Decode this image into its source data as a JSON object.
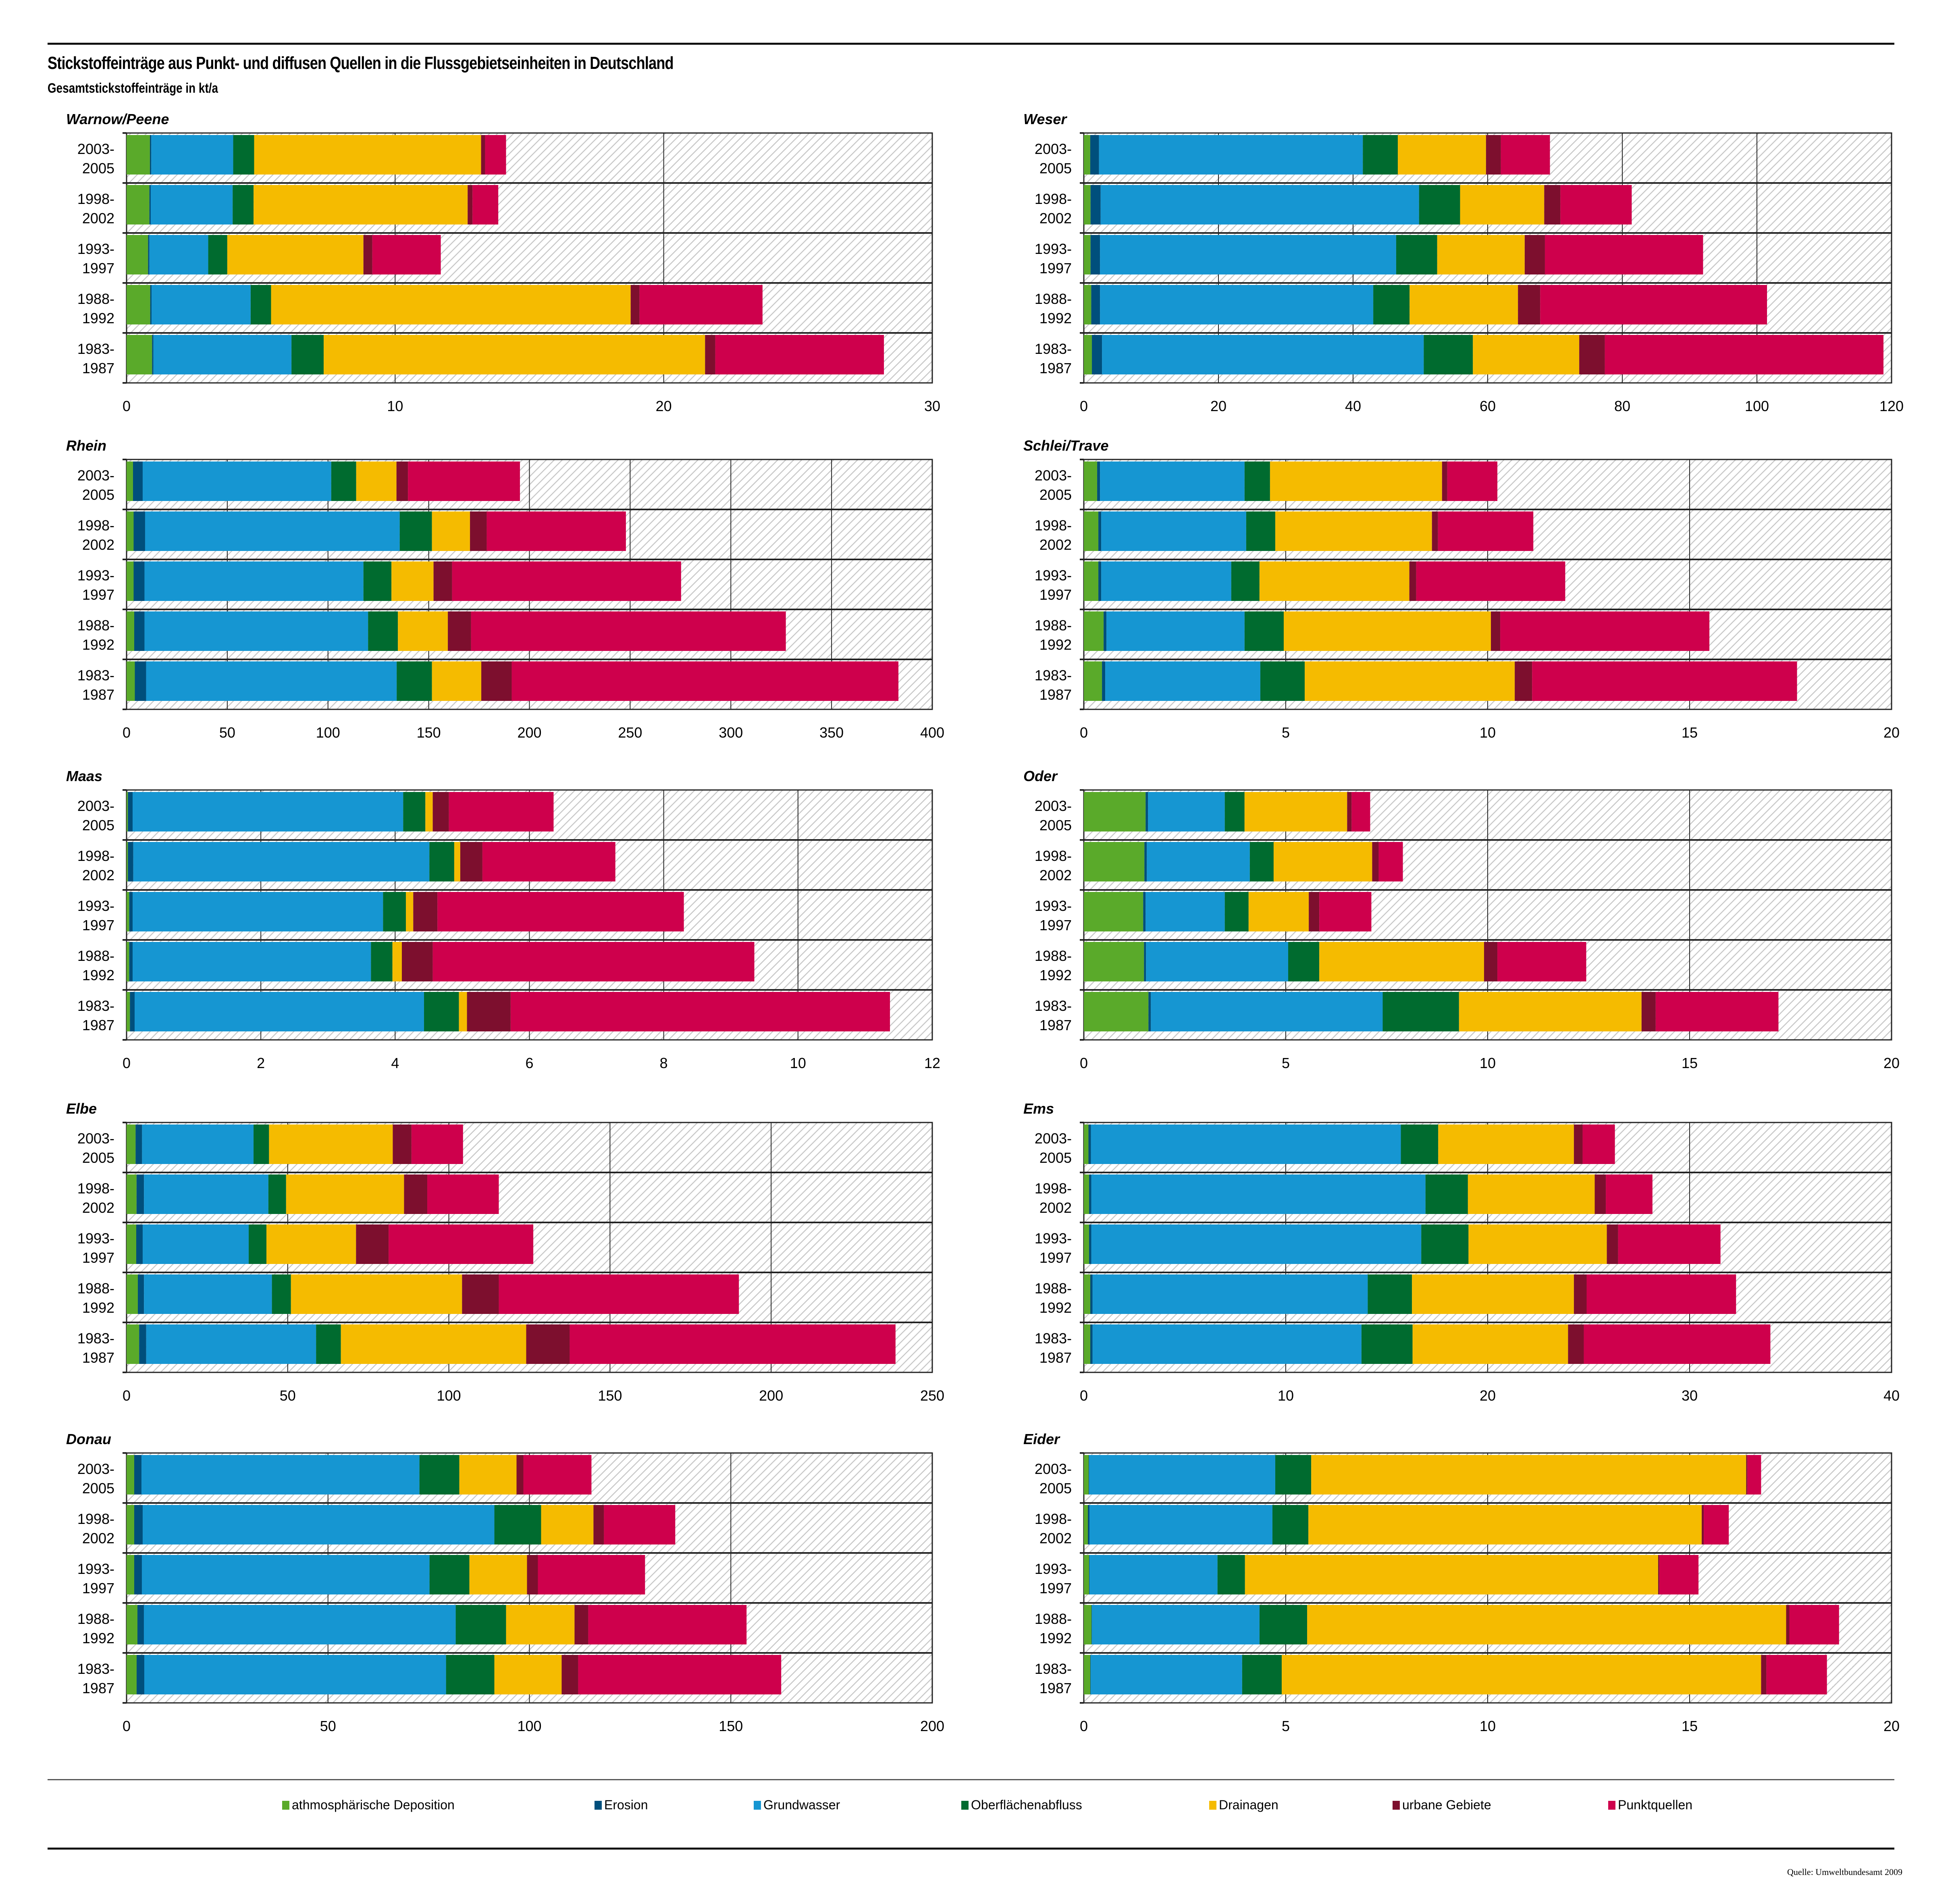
{
  "header": {
    "title": "Stickstoffeinträge aus Punkt- und diffusen Quellen in die Flussgebietseinheiten in Deutschland",
    "subtitle": "Gesamtstickstoffeinträge in kt/a"
  },
  "legend": [
    {
      "label": "athmosphärische Deposition",
      "color": "#5aaa2a"
    },
    {
      "label": "Erosion",
      "color": "#004f7c"
    },
    {
      "label": "Grundwasser",
      "color": "#1696d2"
    },
    {
      "label": "Oberflächenabfluss",
      "color": "#006b2f"
    },
    {
      "label": "Drainagen",
      "color": "#f5bb00"
    },
    {
      "label": "urbane Gebiete",
      "color": "#7d0f2e"
    },
    {
      "label": "Punktquellen",
      "color": "#ce004c"
    }
  ],
  "source": "Quelle: Umweltbundesamt 2009",
  "chart_data": [
    {
      "type": "bar",
      "orientation": "horizontal",
      "stacked": true,
      "title": "Warnow/Peene",
      "xlim": [
        0,
        30
      ],
      "xticks": [
        0,
        10,
        20,
        30
      ],
      "categories": [
        "2003-2005",
        "1998-2002",
        "1993-1997",
        "1988-1992",
        "1983-1987"
      ],
      "series": [
        {
          "name": "athmosphärische Deposition",
          "values": [
            0.87,
            0.85,
            0.8,
            0.88,
            0.95
          ]
        },
        {
          "name": "Erosion",
          "values": [
            0.05,
            0.05,
            0.05,
            0.05,
            0.05
          ]
        },
        {
          "name": "Grundwasser",
          "values": [
            3.05,
            3.05,
            2.19,
            3.69,
            5.14
          ]
        },
        {
          "name": "Oberflächenabfluss",
          "values": [
            0.78,
            0.78,
            0.71,
            0.76,
            1.2
          ]
        },
        {
          "name": "Drainagen",
          "values": [
            8.45,
            7.97,
            5.07,
            13.39,
            14.2
          ]
        },
        {
          "name": "urbane Gebiete",
          "values": [
            0.15,
            0.18,
            0.33,
            0.33,
            0.38
          ]
        },
        {
          "name": "Punktquellen",
          "values": [
            0.78,
            0.96,
            2.55,
            4.58,
            6.28
          ]
        }
      ]
    },
    {
      "type": "bar",
      "orientation": "horizontal",
      "stacked": true,
      "title": "Weser",
      "xlim": [
        0,
        120
      ],
      "xticks": [
        0,
        20,
        40,
        60,
        80,
        100,
        120
      ],
      "categories": [
        "2003-2005",
        "1998-2002",
        "1993-1997",
        "1988-1992",
        "1983-1987"
      ],
      "series": [
        {
          "name": "athmosphärische Deposition",
          "values": [
            0.95,
            1.0,
            1.0,
            1.1,
            1.2
          ]
        },
        {
          "name": "Erosion",
          "values": [
            1.3,
            1.5,
            1.4,
            1.3,
            1.5
          ]
        },
        {
          "name": "Grundwasser",
          "values": [
            39.2,
            47.3,
            44.0,
            40.6,
            47.8
          ]
        },
        {
          "name": "Oberflächenabfluss",
          "values": [
            5.2,
            6.1,
            6.1,
            5.4,
            7.3
          ]
        },
        {
          "name": "Drainagen",
          "values": [
            13.1,
            12.5,
            13.0,
            16.1,
            15.8
          ]
        },
        {
          "name": "urbane Gebiete",
          "values": [
            2.2,
            2.4,
            3.0,
            3.3,
            3.8
          ]
        },
        {
          "name": "Punktquellen",
          "values": [
            7.3,
            10.6,
            23.5,
            33.7,
            41.4
          ]
        }
      ]
    },
    {
      "type": "bar",
      "orientation": "horizontal",
      "stacked": true,
      "title": "Rhein",
      "xlim": [
        0,
        400
      ],
      "xticks": [
        0,
        50,
        100,
        150,
        200,
        250,
        300,
        350,
        400
      ],
      "categories": [
        "2003-2005",
        "1998-2002",
        "1993-1997",
        "1988-1992",
        "1983-1987"
      ],
      "series": [
        {
          "name": "athmosphärische Deposition",
          "values": [
            3.2,
            3.5,
            3.5,
            3.8,
            4.1
          ]
        },
        {
          "name": "Erosion",
          "values": [
            4.8,
            5.7,
            5.4,
            5.1,
            5.6
          ]
        },
        {
          "name": "Grundwasser",
          "values": [
            93.6,
            126.4,
            108.7,
            111.0,
            124.4
          ]
        },
        {
          "name": "Oberflächenabfluss",
          "values": [
            12.4,
            16.0,
            13.9,
            14.8,
            17.5
          ]
        },
        {
          "name": "Drainagen",
          "values": [
            20.0,
            18.9,
            20.9,
            24.8,
            24.5
          ]
        },
        {
          "name": "urbane Gebiete",
          "values": [
            5.7,
            8.3,
            9.2,
            11.5,
            15.1
          ]
        },
        {
          "name": "Punktquellen",
          "values": [
            55.6,
            69.1,
            113.7,
            156.3,
            192.0
          ]
        }
      ]
    },
    {
      "type": "bar",
      "orientation": "horizontal",
      "stacked": true,
      "title": "Schlei/Trave",
      "xlim": [
        0,
        20
      ],
      "xticks": [
        0,
        5,
        10,
        15,
        20
      ],
      "categories": [
        "2003-2005",
        "1998-2002",
        "1993-1997",
        "1988-1992",
        "1983-1987"
      ],
      "series": [
        {
          "name": "athmosphärische Deposition",
          "values": [
            0.33,
            0.36,
            0.36,
            0.49,
            0.45
          ]
        },
        {
          "name": "Erosion",
          "values": [
            0.07,
            0.07,
            0.07,
            0.07,
            0.08
          ]
        },
        {
          "name": "Grundwasser",
          "values": [
            3.58,
            3.59,
            3.22,
            3.42,
            3.84
          ]
        },
        {
          "name": "Oberflächenabfluss",
          "values": [
            0.63,
            0.72,
            0.7,
            0.97,
            1.1
          ]
        },
        {
          "name": "Drainagen",
          "values": [
            4.26,
            3.88,
            3.71,
            5.13,
            5.2
          ]
        },
        {
          "name": "urbane Gebiete",
          "values": [
            0.13,
            0.15,
            0.17,
            0.23,
            0.43
          ]
        },
        {
          "name": "Punktquellen",
          "values": [
            1.24,
            2.36,
            3.69,
            5.18,
            6.56
          ]
        }
      ]
    },
    {
      "type": "bar",
      "orientation": "horizontal",
      "stacked": true,
      "title": "Maas",
      "xlim": [
        0,
        12
      ],
      "xticks": [
        0,
        2,
        4,
        6,
        8,
        10,
        12
      ],
      "categories": [
        "2003-2005",
        "1998-2002",
        "1993-1997",
        "1988-1992",
        "1983-1987"
      ],
      "series": [
        {
          "name": "athmosphärische Deposition",
          "values": [
            0.02,
            0.02,
            0.04,
            0.04,
            0.05
          ]
        },
        {
          "name": "Erosion",
          "values": [
            0.07,
            0.08,
            0.05,
            0.05,
            0.07
          ]
        },
        {
          "name": "Grundwasser",
          "values": [
            4.03,
            4.41,
            3.73,
            3.55,
            4.31
          ]
        },
        {
          "name": "Oberflächenabfluss",
          "values": [
            0.33,
            0.37,
            0.34,
            0.32,
            0.52
          ]
        },
        {
          "name": "Drainagen",
          "values": [
            0.11,
            0.09,
            0.11,
            0.14,
            0.12
          ]
        },
        {
          "name": "urbane Gebiete",
          "values": [
            0.24,
            0.33,
            0.36,
            0.46,
            0.65
          ]
        },
        {
          "name": "Punktquellen",
          "values": [
            1.56,
            1.98,
            3.67,
            4.79,
            5.65
          ]
        }
      ]
    },
    {
      "type": "bar",
      "orientation": "horizontal",
      "stacked": true,
      "title": "Oder",
      "xlim": [
        0,
        20
      ],
      "xticks": [
        0,
        5,
        10,
        15,
        20
      ],
      "categories": [
        "2003-2005",
        "1998-2002",
        "1993-1997",
        "1988-1992",
        "1983-1987"
      ],
      "series": [
        {
          "name": "athmosphärische Deposition",
          "values": [
            1.53,
            1.5,
            1.47,
            1.49,
            1.6
          ]
        },
        {
          "name": "Erosion",
          "values": [
            0.06,
            0.06,
            0.06,
            0.05,
            0.06
          ]
        },
        {
          "name": "Grundwasser",
          "values": [
            1.9,
            2.55,
            1.96,
            3.52,
            5.74
          ]
        },
        {
          "name": "Oberflächenabfluss",
          "values": [
            0.49,
            0.59,
            0.59,
            0.77,
            1.89
          ]
        },
        {
          "name": "Drainagen",
          "values": [
            2.54,
            2.44,
            1.49,
            4.08,
            4.52
          ]
        },
        {
          "name": "urbane Gebiete",
          "values": [
            0.11,
            0.16,
            0.26,
            0.33,
            0.35
          ]
        },
        {
          "name": "Punktquellen",
          "values": [
            0.46,
            0.6,
            1.29,
            2.2,
            3.04
          ]
        }
      ]
    },
    {
      "type": "bar",
      "orientation": "horizontal",
      "stacked": true,
      "title": "Elbe",
      "xlim": [
        0,
        250
      ],
      "xticks": [
        0,
        50,
        100,
        150,
        200,
        250
      ],
      "categories": [
        "2003-2005",
        "1998-2002",
        "1993-1997",
        "1988-1992",
        "1983-1987"
      ],
      "series": [
        {
          "name": "athmosphärische Deposition",
          "values": [
            2.8,
            3.1,
            3.0,
            3.5,
            3.9
          ]
        },
        {
          "name": "Erosion",
          "values": [
            2.0,
            2.3,
            2.0,
            1.9,
            2.2
          ]
        },
        {
          "name": "Grundwasser",
          "values": [
            34.6,
            38.6,
            32.9,
            39.7,
            52.7
          ]
        },
        {
          "name": "Oberflächenabfluss",
          "values": [
            4.8,
            5.5,
            5.5,
            5.9,
            7.7
          ]
        },
        {
          "name": "Drainagen",
          "values": [
            38.4,
            36.6,
            27.8,
            53.1,
            57.5
          ]
        },
        {
          "name": "urbane Gebiete",
          "values": [
            5.8,
            7.2,
            10.1,
            11.4,
            13.5
          ]
        },
        {
          "name": "Punktquellen",
          "values": [
            16.0,
            22.2,
            44.9,
            74.5,
            101.1
          ]
        }
      ]
    },
    {
      "type": "bar",
      "orientation": "horizontal",
      "stacked": true,
      "title": "Ems",
      "xlim": [
        0,
        40
      ],
      "xticks": [
        0,
        10,
        20,
        30,
        40
      ],
      "categories": [
        "2003-2005",
        "1998-2002",
        "1993-1997",
        "1988-1992",
        "1983-1987"
      ],
      "series": [
        {
          "name": "athmosphärische Deposition",
          "values": [
            0.23,
            0.26,
            0.26,
            0.32,
            0.32
          ]
        },
        {
          "name": "Erosion",
          "values": [
            0.12,
            0.11,
            0.11,
            0.11,
            0.11
          ]
        },
        {
          "name": "Grundwasser",
          "values": [
            15.35,
            16.55,
            16.34,
            13.63,
            13.32
          ]
        },
        {
          "name": "Oberflächenabfluss",
          "values": [
            1.85,
            2.1,
            2.34,
            2.19,
            2.53
          ]
        },
        {
          "name": "Drainagen",
          "values": [
            6.72,
            6.28,
            6.85,
            8.02,
            7.7
          ]
        },
        {
          "name": "urbane Gebiete",
          "values": [
            0.43,
            0.55,
            0.56,
            0.63,
            0.78
          ]
        },
        {
          "name": "Punktquellen",
          "values": [
            1.6,
            2.31,
            5.07,
            7.4,
            9.24
          ]
        }
      ]
    },
    {
      "type": "bar",
      "orientation": "horizontal",
      "stacked": true,
      "title": "Donau",
      "xlim": [
        0,
        200
      ],
      "xticks": [
        0,
        50,
        100,
        150,
        200
      ],
      "categories": [
        "2003-2005",
        "1998-2002",
        "1993-1997",
        "1988-1992",
        "1983-1987"
      ],
      "series": [
        {
          "name": "athmosphärische Deposition",
          "values": [
            1.9,
            1.9,
            1.9,
            2.7,
            2.5
          ]
        },
        {
          "name": "Erosion",
          "values": [
            1.8,
            2.1,
            1.9,
            1.6,
            1.9
          ]
        },
        {
          "name": "Grundwasser",
          "values": [
            69.0,
            87.3,
            71.4,
            77.4,
            74.9
          ]
        },
        {
          "name": "Oberflächenabfluss",
          "values": [
            9.9,
            11.6,
            9.9,
            12.5,
            12.0
          ]
        },
        {
          "name": "Drainagen",
          "values": [
            14.2,
            13.0,
            14.3,
            17.0,
            16.7
          ]
        },
        {
          "name": "urbane Gebiete",
          "values": [
            1.7,
            2.6,
            2.7,
            3.4,
            4.1
          ]
        },
        {
          "name": "Punktquellen",
          "values": [
            16.9,
            17.7,
            26.6,
            39.3,
            50.4
          ]
        }
      ]
    },
    {
      "type": "bar",
      "orientation": "horizontal",
      "stacked": true,
      "title": "Eider",
      "xlim": [
        0,
        20
      ],
      "xticks": [
        0,
        5,
        10,
        15,
        20
      ],
      "categories": [
        "2003-2005",
        "1998-2002",
        "1993-1997",
        "1988-1992",
        "1983-1987"
      ],
      "series": [
        {
          "name": "athmosphärische Deposition",
          "values": [
            0.12,
            0.1,
            0.13,
            0.19,
            0.16
          ]
        },
        {
          "name": "Erosion",
          "values": [
            0.01,
            0.04,
            0.01,
            0.01,
            0.01
          ]
        },
        {
          "name": "Grundwasser",
          "values": [
            4.61,
            4.53,
            3.17,
            4.15,
            3.75
          ]
        },
        {
          "name": "Oberflächenabfluss",
          "values": [
            0.89,
            0.89,
            0.68,
            1.18,
            0.98
          ]
        },
        {
          "name": "Drainagen",
          "values": [
            10.77,
            9.74,
            10.23,
            11.86,
            11.87
          ]
        },
        {
          "name": "urbane Gebiete",
          "values": [
            0.03,
            0.05,
            0.03,
            0.08,
            0.13
          ]
        },
        {
          "name": "Punktquellen",
          "values": [
            0.34,
            0.62,
            0.97,
            1.23,
            1.5
          ]
        }
      ]
    }
  ]
}
